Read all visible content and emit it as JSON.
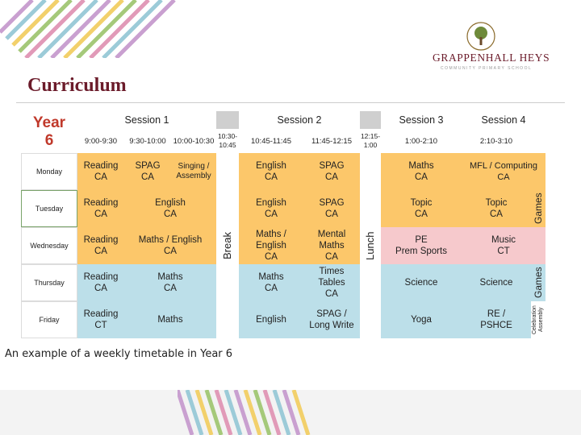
{
  "logo": {
    "name": "GRAPPENHALL HEYS",
    "subtitle": "COMMUNITY PRIMARY SCHOOL"
  },
  "title": "Curriculum",
  "caption": "An example of a weekly timetable in Year 6",
  "timetable": {
    "year_label": "Year\n6",
    "sessions": [
      "Session 1",
      "Session 2",
      "Session 3",
      "Session 4"
    ],
    "times": [
      "9:00-9:30",
      "9:30-10:00",
      "10:00-10:30",
      "10:30-\n10:45",
      "10:45-11:45",
      "11:45-12:15",
      "12:15-\n1:00",
      "1:00-2:10",
      "2:10-3:10"
    ],
    "days": [
      "Monday",
      "Tuesday",
      "Wednesday",
      "Thursday",
      "Friday"
    ],
    "break_label": "Break",
    "lunch_label": "Lunch",
    "games_label": "Games",
    "celebration_label": "Celebration\nAssembly",
    "rows": [
      [
        "Reading\nCA",
        "SPAG\nCA",
        "Singing /\nAssembly",
        "English\nCA",
        "SPAG\nCA",
        "Maths\nCA",
        "MFL / Computing\nCA"
      ],
      [
        "Reading\nCA",
        "English\nCA",
        "English\nCA",
        "SPAG\nCA",
        "Topic\nCA",
        "Topic\nCA"
      ],
      [
        "Reading\nCA",
        "Maths / English\nCA",
        "Maths /\nEnglish\nCA",
        "Mental\nMaths\nCA",
        "PE\nPrem Sports",
        "Music\nCT"
      ],
      [
        "Reading\nCA",
        "Maths\nCA",
        "Maths\nCA",
        "Times\nTables\nCA",
        "Science",
        "Science"
      ],
      [
        "Reading\nCT",
        "Maths",
        "English",
        "SPAG /\nLong Write",
        "Yoga",
        "RE /\nPSHCE"
      ]
    ]
  },
  "colors": {
    "title": "#6b1b2a",
    "orange": "#fcc76a",
    "pink": "#f6c9cc",
    "blue": "#bcdfe9",
    "year": "#c0392b"
  }
}
